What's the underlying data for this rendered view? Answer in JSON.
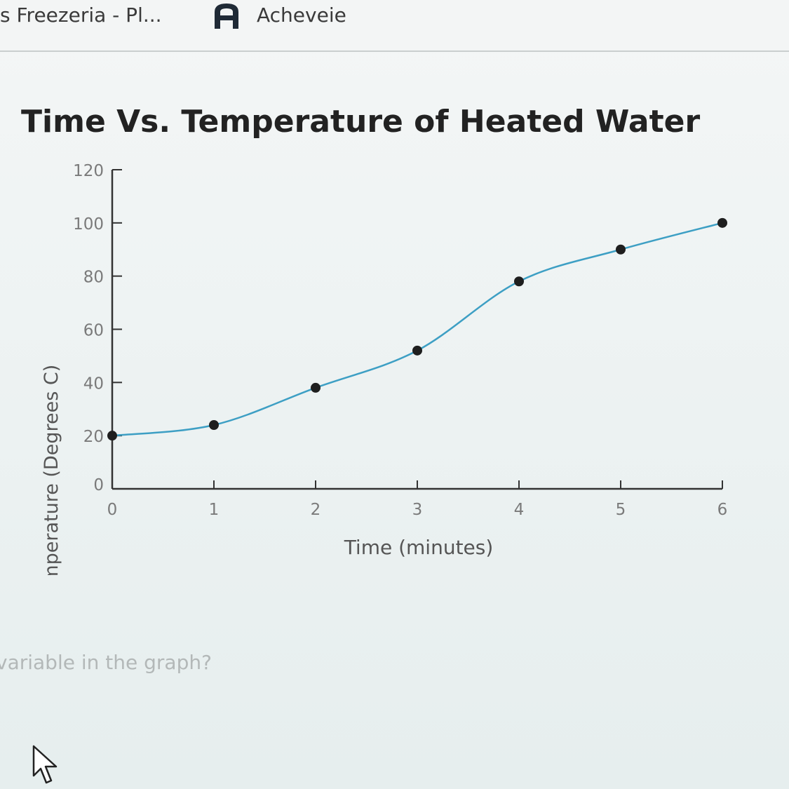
{
  "bookmarks": [
    {
      "label": "s Freezeria - Pl..."
    },
    {
      "label": "Acheveie",
      "icon": "acheveie-logo-icon"
    }
  ],
  "question_text": "variable in the graph?",
  "colors": {
    "line": "#3d9fc4",
    "marker": "#1e1e1e",
    "axis": "#333333",
    "tick_text": "#7a7a7a"
  },
  "chart_data": {
    "type": "line",
    "title": "Time Vs. Temperature of Heated Water",
    "xlabel": "Time (minutes)",
    "ylabel": "Temperature (Degrees C)",
    "xlim": [
      0,
      6
    ],
    "ylim": [
      0,
      120
    ],
    "xticks": [
      "0",
      "1",
      "2",
      "3",
      "4",
      "5",
      "6"
    ],
    "yticks": [
      "0",
      "20",
      "40",
      "60",
      "80",
      "100",
      "120"
    ],
    "x": [
      0,
      1,
      2,
      3,
      4,
      5,
      6
    ],
    "y": [
      20,
      24,
      38,
      52,
      78,
      90,
      100
    ],
    "grid": false
  }
}
